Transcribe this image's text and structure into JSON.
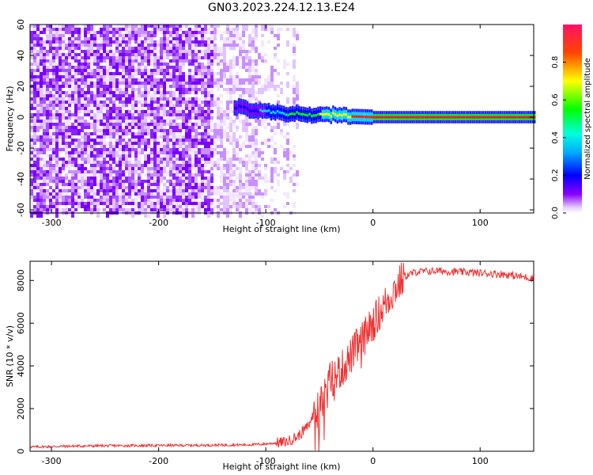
{
  "title": "GN03.2023.224.12.13.E24",
  "chart_data": [
    {
      "type": "heatmap",
      "xlabel": "Height of straight line (km)",
      "ylabel": "Frequency (Hz)",
      "xlim": [
        -320,
        150
      ],
      "ylim": [
        -62,
        60
      ],
      "x_ticks": [
        -300,
        -200,
        -100,
        0,
        100
      ],
      "y_ticks": [
        -60,
        -40,
        -20,
        0,
        20,
        40,
        60
      ],
      "grid": false,
      "colorbar": {
        "label": "Normalized spectral amplitude",
        "range": [
          0,
          1
        ],
        "ticks": [
          0.0,
          0.2,
          0.4,
          0.6,
          0.8
        ],
        "colormap": [
          "#ffffff",
          "#7700ff",
          "#0000ff",
          "#00ffff",
          "#00ff00",
          "#ffff00",
          "#ff0000",
          "#ff1166"
        ]
      },
      "features": [
        {
          "name": "broadband noise",
          "x_range": [
            -320,
            -70
          ],
          "freq_range": [
            -62,
            60
          ],
          "amplitude": 0.1
        },
        {
          "name": "signal line",
          "x_range": [
            -130,
            150
          ],
          "freq_points": [
            [
              -130,
              7
            ],
            [
              -110,
              4
            ],
            [
              -90,
              3
            ],
            [
              -70,
              2
            ],
            [
              -50,
              1
            ],
            [
              -30,
              2
            ],
            [
              -20,
              0.5
            ],
            [
              0,
              0
            ],
            [
              150,
              0
            ]
          ],
          "amplitude_points": [
            [
              -130,
              0.3
            ],
            [
              -100,
              0.5
            ],
            [
              -60,
              0.7
            ],
            [
              -20,
              0.9
            ],
            [
              0,
              1.0
            ],
            [
              150,
              1.0
            ]
          ]
        }
      ]
    },
    {
      "type": "line",
      "xlabel": "Height of straight line (km)",
      "ylabel": "SNR (10 * v/v)",
      "xlim": [
        -320,
        150
      ],
      "ylim": [
        0,
        8900
      ],
      "x_ticks": [
        -300,
        -200,
        -100,
        0,
        100
      ],
      "y_ticks": [
        0,
        2000,
        4000,
        6000,
        8000
      ],
      "grid": false,
      "series": [
        {
          "color": "#ee3333",
          "x": [
            -320,
            -280,
            -240,
            -200,
            -160,
            -120,
            -100,
            -80,
            -70,
            -60,
            -55,
            -50,
            -45,
            -40,
            -35,
            -30,
            -25,
            -20,
            -15,
            -10,
            -5,
            0,
            10,
            20,
            30,
            40,
            60,
            80,
            100,
            120,
            150
          ],
          "y": [
            200,
            240,
            260,
            270,
            280,
            300,
            340,
            450,
            700,
            1200,
            1800,
            2500,
            3000,
            3300,
            3600,
            3800,
            4100,
            4500,
            4900,
            5200,
            5600,
            6000,
            6800,
            7600,
            8200,
            8400,
            8450,
            8400,
            8350,
            8300,
            8100
          ]
        }
      ]
    }
  ]
}
